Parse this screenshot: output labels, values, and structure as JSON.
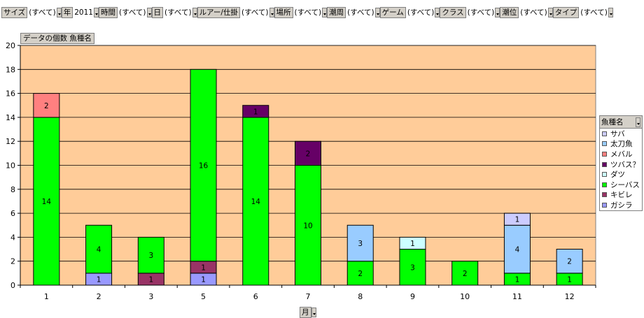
{
  "filters": [
    {
      "name": "サイズ",
      "value": "(すべて)"
    },
    {
      "name": "年",
      "value": "2011"
    },
    {
      "name": "時間",
      "value": "(すべて)"
    },
    {
      "name": "日",
      "value": "(すべて)"
    },
    {
      "name": "ルアー/仕掛",
      "value": "(すべて)"
    },
    {
      "name": "場所",
      "value": "(すべて)"
    },
    {
      "name": "潮周",
      "value": "(すべて)"
    },
    {
      "name": "ゲーム",
      "value": "(すべて)"
    },
    {
      "name": "クラス",
      "value": "(すべて)"
    },
    {
      "name": "潮位",
      "value": "(すべて)"
    },
    {
      "name": "タイプ",
      "value": "(すべて)"
    }
  ],
  "data_field_label": "データの個数  魚種名",
  "legend_title": "魚種名",
  "x_field_label": "月",
  "colors": {
    "plot_bg": "#ffcc99",
    "grid": "#000000",
    "bar_border": "#000000"
  },
  "chart_data": {
    "type": "bar",
    "stacked": true,
    "categories": [
      "1",
      "2",
      "3",
      "5",
      "6",
      "7",
      "8",
      "9",
      "10",
      "11",
      "12"
    ],
    "ylim": [
      0,
      20
    ],
    "yticks": [
      0,
      2,
      4,
      6,
      8,
      10,
      12,
      14,
      16,
      18,
      20
    ],
    "grid": true,
    "legend_position": "right",
    "xlabel": "月",
    "series": [
      {
        "name": "サバ",
        "color": "#ccccff",
        "values": [
          0,
          0,
          0,
          0,
          0,
          0,
          0,
          0,
          0,
          1,
          0
        ]
      },
      {
        "name": "太刀魚",
        "color": "#99ccff",
        "values": [
          0,
          0,
          0,
          0,
          0,
          0,
          3,
          0,
          0,
          4,
          2
        ]
      },
      {
        "name": "メバル",
        "color": "#ff8080",
        "values": [
          2,
          0,
          0,
          0,
          0,
          0,
          0,
          0,
          0,
          0,
          0
        ]
      },
      {
        "name": "ツバス？",
        "color": "#660066",
        "values": [
          0,
          0,
          0,
          0,
          1,
          2,
          0,
          0,
          0,
          0,
          0
        ]
      },
      {
        "name": "ダツ",
        "color": "#ccffff",
        "values": [
          0,
          0,
          0,
          0,
          0,
          0,
          0,
          1,
          0,
          0,
          0
        ]
      },
      {
        "name": "シーバス",
        "color": "#00ff00",
        "values": [
          14,
          4,
          3,
          16,
          14,
          10,
          2,
          3,
          2,
          1,
          1
        ]
      },
      {
        "name": "キビレ",
        "color": "#993366",
        "values": [
          0,
          0,
          1,
          1,
          0,
          0,
          0,
          0,
          0,
          0,
          0
        ]
      },
      {
        "name": "ガシラ",
        "color": "#9999ff",
        "values": [
          0,
          1,
          0,
          1,
          0,
          0,
          0,
          0,
          0,
          0,
          0
        ]
      }
    ],
    "stack_order_bottom_to_top": [
      "ガシラ",
      "キビレ",
      "シーバス",
      "ダツ",
      "ツバス？",
      "メバル",
      "太刀魚",
      "サバ"
    ]
  }
}
